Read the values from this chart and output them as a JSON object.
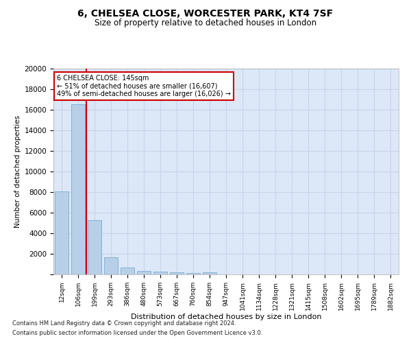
{
  "title_line1": "6, CHELSEA CLOSE, WORCESTER PARK, KT4 7SF",
  "title_line2": "Size of property relative to detached houses in London",
  "xlabel": "Distribution of detached houses by size in London",
  "ylabel": "Number of detached properties",
  "bar_color": "#b8cfe8",
  "bar_edge_color": "#7aaad0",
  "grid_color": "#c8d4e8",
  "bg_color": "#dce8f8",
  "vline_color": "#cc0000",
  "annotation_box_color": "#cc0000",
  "categories": [
    "12sqm",
    "106sqm",
    "199sqm",
    "293sqm",
    "386sqm",
    "480sqm",
    "573sqm",
    "667sqm",
    "760sqm",
    "854sqm",
    "947sqm",
    "1041sqm",
    "1134sqm",
    "1228sqm",
    "1321sqm",
    "1415sqm",
    "1508sqm",
    "1602sqm",
    "1695sqm",
    "1789sqm",
    "1882sqm"
  ],
  "values": [
    8100,
    16500,
    5300,
    1700,
    700,
    350,
    270,
    190,
    160,
    200,
    0,
    0,
    0,
    0,
    0,
    0,
    0,
    0,
    0,
    0,
    0
  ],
  "ylim": [
    0,
    20000
  ],
  "yticks": [
    0,
    2000,
    4000,
    6000,
    8000,
    10000,
    12000,
    14000,
    16000,
    18000,
    20000
  ],
  "vline_x": 1.5,
  "annotation_text": "6 CHELSEA CLOSE: 145sqm\n← 51% of detached houses are smaller (16,607)\n49% of semi-detached houses are larger (16,026) →",
  "footnote1": "Contains HM Land Registry data © Crown copyright and database right 2024.",
  "footnote2": "Contains public sector information licensed under the Open Government Licence v3.0."
}
